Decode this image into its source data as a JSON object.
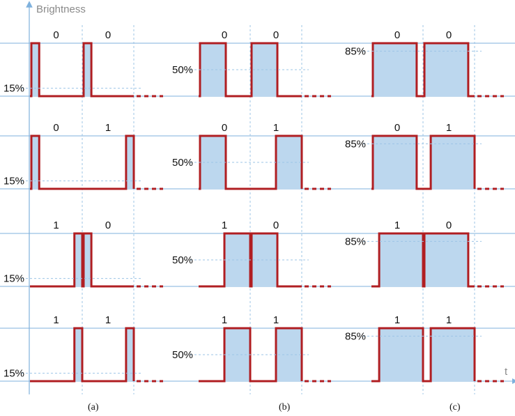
{
  "y_axis_label": "Brightness",
  "x_axis_label": "t",
  "columns": [
    {
      "caption": "(a)",
      "level": "15%",
      "duty": 0.15
    },
    {
      "caption": "(b)",
      "level": "50%",
      "duty": 0.5
    },
    {
      "caption": "(c)",
      "level": "85%",
      "duty": 0.85
    }
  ],
  "rows": [
    {
      "bits": [
        "0",
        "0"
      ]
    },
    {
      "bits": [
        "0",
        "1"
      ]
    },
    {
      "bits": [
        "1",
        "0"
      ]
    },
    {
      "bits": [
        "1",
        "1"
      ]
    }
  ],
  "colors": {
    "signal": "#b01e22",
    "fill": "#bcd7ee",
    "axis": "#7fb1dd"
  }
}
